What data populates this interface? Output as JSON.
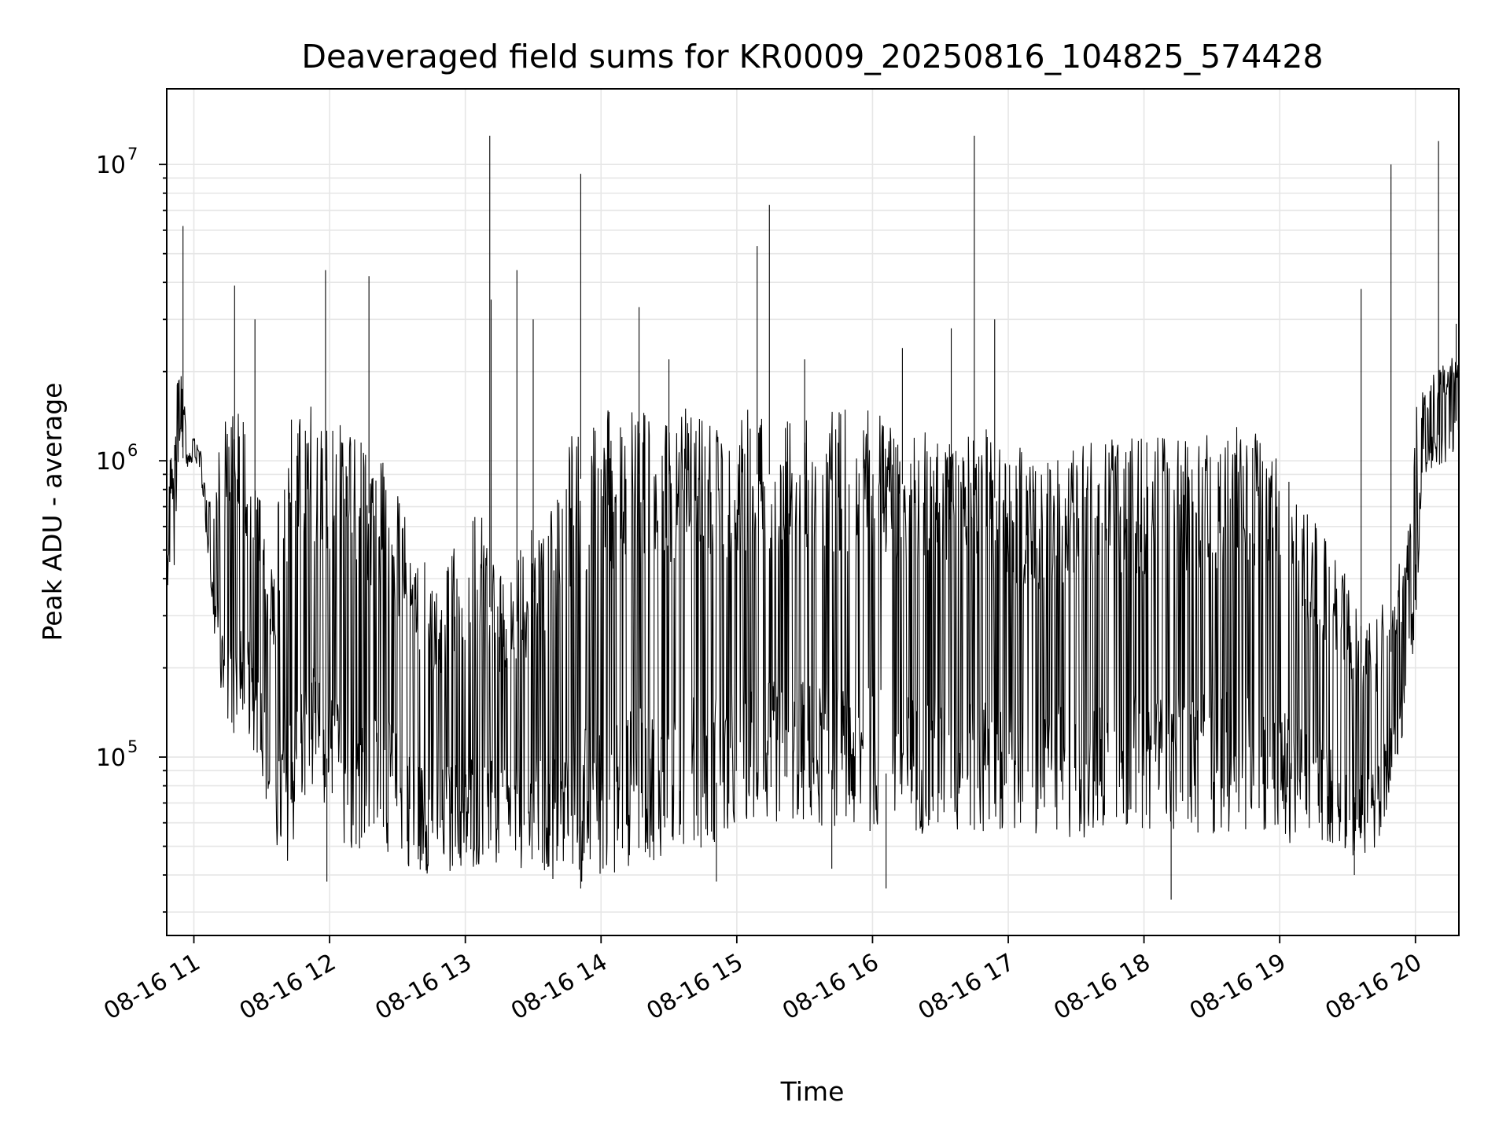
{
  "chart_data": {
    "type": "line",
    "title": "Deaveraged field sums for KR0009_20250816_104825_574428",
    "xlabel": "Time",
    "ylabel": "Peak ADU - average",
    "yscale": "log",
    "grid": true,
    "x_ticks": [
      "08-16 11",
      "08-16 12",
      "08-16 13",
      "08-16 14",
      "08-16 15",
      "08-16 16",
      "08-16 17",
      "08-16 18",
      "08-16 19",
      "08-16 20"
    ],
    "x_tick_hours": [
      11,
      12,
      13,
      14,
      15,
      16,
      17,
      18,
      19,
      20
    ],
    "xlim_hours": [
      10.8,
      20.32
    ],
    "y_ticks": [
      {
        "base": "10",
        "exp": "5",
        "value": 100000
      },
      {
        "base": "10",
        "exp": "6",
        "value": 1000000
      },
      {
        "base": "10",
        "exp": "7",
        "value": 10000000
      }
    ],
    "ylim": [
      25000,
      18000000
    ],
    "series": [
      {
        "color": "#000000",
        "x_hours": [
          10.8,
          10.85,
          10.88,
          10.9,
          10.92,
          10.95,
          11.0,
          11.05,
          11.1,
          11.15,
          11.2,
          11.25,
          11.3,
          11.35,
          11.4,
          11.45,
          11.5,
          11.55,
          11.6,
          11.65,
          11.7,
          11.75,
          11.8,
          11.9,
          12.0,
          12.1,
          12.2,
          12.3,
          12.4,
          12.5,
          12.6,
          12.7,
          12.8,
          12.9,
          13.0,
          13.1,
          13.2,
          13.3,
          13.4,
          13.5,
          13.6,
          13.7,
          13.8,
          13.9,
          14.0,
          14.2,
          14.4,
          14.6,
          14.8,
          15.0,
          15.2,
          15.4,
          15.6,
          15.8,
          16.0,
          16.2,
          16.4,
          16.6,
          16.8,
          17.0,
          17.2,
          17.4,
          17.6,
          17.8,
          18.0,
          18.2,
          18.4,
          18.6,
          18.8,
          18.95,
          19.1,
          19.3,
          19.5,
          19.7,
          19.85,
          19.95,
          20.0,
          20.05,
          20.15,
          20.25,
          20.32
        ],
        "low": [
          350000,
          380000,
          700000,
          1200000,
          1000000,
          950000,
          1000000,
          900000,
          500000,
          250000,
          150000,
          110000,
          100000,
          110000,
          120000,
          100000,
          90000,
          60000,
          45000,
          42000,
          45000,
          50000,
          60000,
          70000,
          60000,
          50000,
          48000,
          50000,
          48000,
          45000,
          42000,
          40000,
          42000,
          40000,
          40000,
          42000,
          41000,
          40000,
          39000,
          38000,
          37000,
          37000,
          36000,
          37000,
          38000,
          42000,
          45000,
          48000,
          50000,
          55000,
          58000,
          60000,
          58000,
          55000,
          55000,
          55000,
          55000,
          54000,
          52000,
          52000,
          52000,
          52000,
          53000,
          55000,
          56000,
          56000,
          55000,
          55000,
          55000,
          55000,
          50000,
          52000,
          45000,
          48000,
          80000,
          150000,
          250000,
          900000,
          950000,
          1000000,
          1100000
        ],
        "high": [
          1200000,
          1000000,
          2500000,
          2200000,
          1700000,
          1300000,
          1200000,
          1100000,
          700000,
          900000,
          1200000,
          1500000,
          1500000,
          1500000,
          1200000,
          900000,
          700000,
          400000,
          600000,
          1300000,
          1500000,
          1500000,
          1600000,
          1500000,
          1400000,
          1300000,
          1200000,
          1100000,
          1000000,
          800000,
          600000,
          500000,
          400000,
          500000,
          600000,
          700000,
          500000,
          400000,
          500000,
          600000,
          700000,
          900000,
          1400000,
          1500000,
          1500000,
          1500000,
          1500000,
          1500000,
          1500000,
          1500000,
          1500000,
          1500000,
          1500000,
          1500000,
          1500000,
          1400000,
          1300000,
          1200000,
          1300000,
          1200000,
          1000000,
          1100000,
          1200000,
          1200000,
          1200000,
          1200000,
          1200000,
          1300000,
          1300000,
          1200000,
          800000,
          600000,
          400000,
          300000,
          400000,
          600000,
          1500000,
          1800000,
          2000000,
          2200000,
          2300000
        ],
        "spikes": [
          {
            "x_hours": 10.92,
            "value": 6200000
          },
          {
            "x_hours": 11.3,
            "value": 3900000
          },
          {
            "x_hours": 11.45,
            "value": 3000000
          },
          {
            "x_hours": 11.97,
            "value": 4400000
          },
          {
            "x_hours": 12.29,
            "value": 4200000
          },
          {
            "x_hours": 13.18,
            "value": 12500000
          },
          {
            "x_hours": 13.19,
            "value": 3500000
          },
          {
            "x_hours": 13.38,
            "value": 4400000
          },
          {
            "x_hours": 13.5,
            "value": 3000000
          },
          {
            "x_hours": 13.85,
            "value": 9300000
          },
          {
            "x_hours": 14.28,
            "value": 3300000
          },
          {
            "x_hours": 14.5,
            "value": 2200000
          },
          {
            "x_hours": 15.15,
            "value": 5300000
          },
          {
            "x_hours": 15.24,
            "value": 7300000
          },
          {
            "x_hours": 15.5,
            "value": 2200000
          },
          {
            "x_hours": 16.22,
            "value": 2400000
          },
          {
            "x_hours": 16.58,
            "value": 2800000
          },
          {
            "x_hours": 16.75,
            "value": 12500000
          },
          {
            "x_hours": 16.9,
            "value": 3000000
          },
          {
            "x_hours": 19.6,
            "value": 3800000
          },
          {
            "x_hours": 19.82,
            "value": 10000000
          },
          {
            "x_hours": 20.17,
            "value": 12000000
          },
          {
            "x_hours": 20.3,
            "value": 2900000
          }
        ],
        "dips": [
          {
            "x_hours": 11.98,
            "value": 38000
          },
          {
            "x_hours": 13.85,
            "value": 36000
          },
          {
            "x_hours": 14.85,
            "value": 38000
          },
          {
            "x_hours": 15.7,
            "value": 42000
          },
          {
            "x_hours": 16.1,
            "value": 36000
          },
          {
            "x_hours": 18.2,
            "value": 33000
          },
          {
            "x_hours": 19.55,
            "value": 40000
          }
        ]
      }
    ]
  }
}
